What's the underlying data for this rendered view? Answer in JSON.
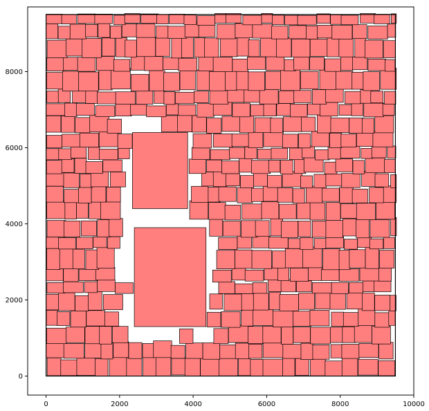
{
  "chart_data": {
    "type": "rectangle_packing",
    "xlim": [
      -500,
      10000
    ],
    "ylim": [
      -500,
      9700
    ],
    "x_ticks": [
      0,
      2000,
      4000,
      6000,
      8000,
      10000
    ],
    "y_ticks": [
      0,
      2000,
      4000,
      6000,
      8000
    ],
    "x_tick_labels": [
      "0",
      "2000",
      "4000",
      "6000",
      "8000",
      "10000"
    ],
    "y_tick_labels": [
      "0",
      "2000",
      "4000",
      "6000",
      "8000"
    ],
    "container": {
      "x": 0,
      "y": 0,
      "w": 9500,
      "h": 9500
    },
    "rect_fill": "#ff7f7f",
    "rect_stroke": "#000000",
    "large_rects": [
      {
        "x": 2350,
        "y": 4400,
        "w": 1500,
        "h": 2000
      },
      {
        "x": 2400,
        "y": 1300,
        "w": 1950,
        "h": 2600
      }
    ],
    "small_rect_size_range": [
      300,
      550
    ],
    "grid": false,
    "title": "",
    "xlabel": "",
    "ylabel": ""
  }
}
